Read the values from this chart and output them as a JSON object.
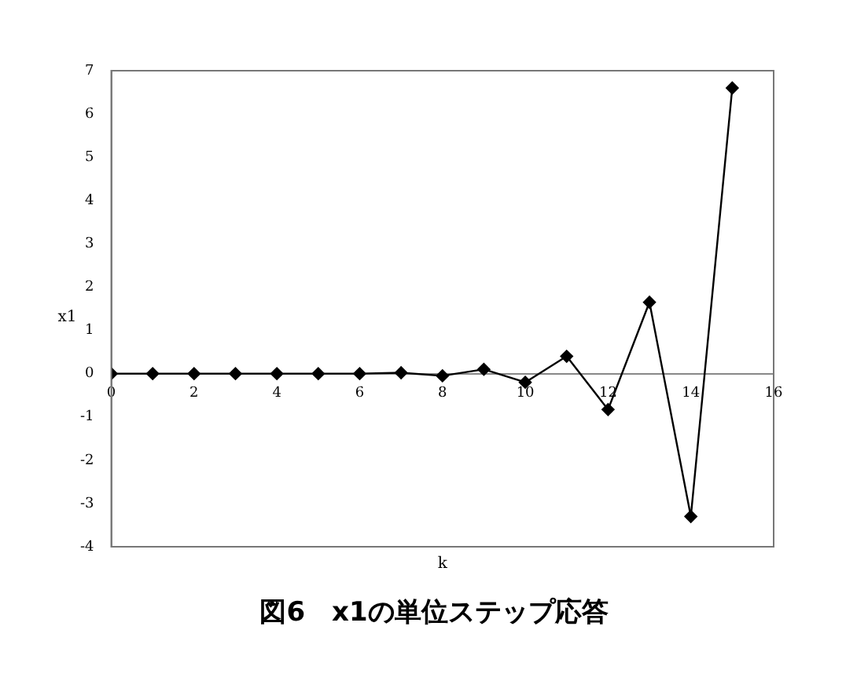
{
  "chart_data": {
    "type": "line",
    "title": "図6　x1の単位ステップ応答",
    "xlabel": "k",
    "ylabel": "x1",
    "x": [
      0,
      1,
      2,
      3,
      4,
      5,
      6,
      7,
      8,
      9,
      10,
      11,
      12,
      13,
      14,
      15
    ],
    "series": [
      {
        "color": "#000000",
        "values": [
          0,
          0,
          0,
          0,
          0,
          0,
          0,
          0.02,
          -0.05,
          0.1,
          -0.2,
          0.4,
          -0.83,
          1.65,
          -3.3,
          6.6
        ]
      }
    ],
    "xlim": [
      0,
      16
    ],
    "xticks": [
      0,
      2,
      4,
      6,
      8,
      10,
      12,
      14,
      16
    ],
    "ylim": [
      -4,
      7
    ],
    "yticks": [
      -4,
      -3,
      -2,
      -1,
      0,
      1,
      2,
      3,
      4,
      5,
      6,
      7
    ],
    "grid": false,
    "legend": false,
    "marker": "diamond",
    "line_style": "solid"
  }
}
